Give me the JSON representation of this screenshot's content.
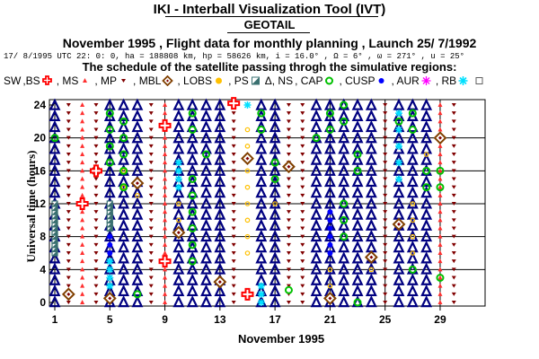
{
  "header": {
    "title": "IKI - Interball Visualization Tool (IVT)",
    "subtitle": "GEOTAIL",
    "info": "November 1995 ,  Flight data for monthly planning ,   Launch 25/ 7/1992",
    "params": "17/ 8/1995 UTC 22: 0: 0, ha = 188808 km, hp = 58626 km, i = 16.0° , Ω =   6° , ω = 271° , u =  25°",
    "schedule": "The schedule of the satellite passing throgh the simulative regions:"
  },
  "legend": [
    {
      "label": "SW",
      "icon": "none"
    },
    {
      "label": ",BS",
      "icon": "cross-icon",
      "color": "#ff0000"
    },
    {
      "label": ", MS",
      "icon": "ms-marker-icon",
      "color": "#ff3030"
    },
    {
      "label": ", MP",
      "icon": "small-down-triangle-icon",
      "color": "#800000"
    },
    {
      "label": ", MBL",
      "icon": "diamond-icon",
      "color": "#804000"
    },
    {
      "label": ", LOBS",
      "icon": "dot-icon",
      "color": "#ffc000"
    },
    {
      "label": ", PS",
      "icon": "half-square-icon",
      "color": "#3a7070"
    },
    {
      "label": "Δ, NS",
      "icon": "none"
    },
    {
      "label": ", CAP",
      "icon": "ring-icon",
      "color": "#00c000"
    },
    {
      "label": ", CUSP",
      "icon": "filled-circle-icon",
      "color": "#0000ff"
    },
    {
      "label": ", AUR",
      "icon": "star-icon",
      "color": "#ff00ff"
    },
    {
      "label": ", RB",
      "icon": "asterisk-icon",
      "color": "#00e0ff"
    },
    {
      "label": "",
      "icon": "small-square-icon",
      "color": "#606060"
    }
  ],
  "colors": {
    "ns": "#000080",
    "bs": "#ff0000",
    "ms": "#ff3030",
    "mp": "#800000",
    "mbl": "#804000",
    "lobs": "#ffc000",
    "ps": "#3a7070",
    "cap": "#00c000",
    "cusp": "#0000ff",
    "rb": "#00e0ff",
    "grid": "#000000"
  },
  "chart_data": {
    "type": "scatter",
    "xlabel": "November 1995",
    "ylabel": "Universal time (hours)",
    "xlim": [
      1,
      31
    ],
    "ylim": [
      0,
      24
    ],
    "x_ticks": [
      "1",
      "5",
      "9",
      "13",
      "17",
      "21",
      "25",
      "29"
    ],
    "y_ticks": [
      "0",
      "4",
      "8",
      "12",
      "16",
      "20",
      "24"
    ],
    "grid": true,
    "days": [
      {
        "day": 1,
        "ns": [
          0,
          24
        ],
        "ps": [
          6,
          12
        ],
        "cap": [
          20
        ]
      },
      {
        "day": 2,
        "mp": [
          0,
          24
        ],
        "mbl": [
          1
        ]
      },
      {
        "day": 3,
        "ms": [
          0,
          24
        ],
        "bs": [
          12
        ]
      },
      {
        "day": 4,
        "mp": [
          0,
          24
        ],
        "mbl": [
          16
        ],
        "bs": [
          16
        ]
      },
      {
        "day": 5,
        "ns": [
          0,
          24
        ],
        "cap": [
          17,
          19,
          21,
          23
        ],
        "cusp": [
          6,
          7,
          8
        ],
        "rb": [
          2,
          3,
          4,
          5
        ],
        "ps": [
          9,
          12
        ],
        "mbl": [
          0.5
        ]
      },
      {
        "day": 6,
        "ns": [
          0,
          24
        ],
        "cap": [
          14,
          16,
          18,
          20,
          22
        ],
        "lobs": [
          16,
          14
        ]
      },
      {
        "day": 7,
        "ns": [
          0,
          24
        ],
        "mbl": [
          14.5
        ],
        "lobs": [
          13
        ],
        "cap": [
          1
        ]
      },
      {
        "day": 8,
        "mp": [
          0,
          24
        ]
      },
      {
        "day": 9,
        "ms": [
          0,
          24
        ],
        "bs": [
          5,
          21.5
        ]
      },
      {
        "day": 10,
        "ns": [
          0,
          24
        ],
        "mbl": [
          8.5
        ],
        "rb": [
          14,
          15,
          16,
          17
        ],
        "lobs": [
          10,
          12
        ]
      },
      {
        "day": 11,
        "ns": [
          0,
          24
        ],
        "cap": [
          5,
          7,
          9,
          11,
          13,
          15,
          21,
          23
        ]
      },
      {
        "day": 12,
        "ns": [
          0,
          24
        ],
        "cap": [
          18
        ]
      },
      {
        "day": 13,
        "ns": [
          0,
          24
        ],
        "mbl": [
          2.5
        ]
      },
      {
        "day": 14,
        "mp": [
          0,
          24
        ],
        "bs": [
          24.2
        ]
      },
      {
        "day": 15,
        "mbl": [
          17.5
        ],
        "bs": [
          1
        ],
        "lobs": [
          6,
          8,
          10,
          12,
          14,
          16,
          19,
          21
        ],
        "rb": [
          24
        ]
      },
      {
        "day": 16,
        "ns": [
          0,
          24
        ],
        "cap": [
          21,
          23
        ],
        "rb": [
          0,
          1,
          2
        ]
      },
      {
        "day": 17,
        "ns": [
          0,
          24
        ],
        "cap": [
          15,
          17
        ],
        "lobs": [
          12
        ]
      },
      {
        "day": 18,
        "mp": [
          0,
          24
        ],
        "mbl": [
          16.5
        ],
        "cap": [
          1.5
        ]
      },
      {
        "day": 19,
        "mp": [
          0,
          24
        ]
      },
      {
        "day": 20,
        "ns": [
          0,
          24
        ],
        "cap": [
          20
        ]
      },
      {
        "day": 21,
        "ns": [
          0,
          24
        ],
        "mbl": [
          0.5
        ],
        "cusp": [
          6,
          7,
          8,
          9,
          10,
          11
        ],
        "cap": [
          21,
          23
        ],
        "lobs": [
          2,
          4
        ]
      },
      {
        "day": 22,
        "ns": [
          0,
          24
        ],
        "cap": [
          8,
          10,
          12,
          22,
          24
        ]
      },
      {
        "day": 23,
        "ns": [
          0,
          24
        ],
        "cap": [
          0,
          16,
          18
        ]
      },
      {
        "day": 24,
        "ns": [
          0,
          24
        ],
        "mbl": [
          5.5
        ],
        "lobs": [
          4
        ]
      },
      {
        "day": 25,
        "mp": [
          0,
          24
        ]
      },
      {
        "day": 26,
        "ns": [
          0,
          24
        ],
        "mbl": [
          9.5
        ],
        "rb": [
          15,
          17,
          19,
          21,
          23
        ],
        "cap": [
          22
        ]
      },
      {
        "day": 27,
        "ns": [
          0,
          24
        ],
        "cap": [
          4,
          21,
          23
        ],
        "lobs": [
          6,
          8,
          10,
          12
        ]
      },
      {
        "day": 28,
        "ns": [
          0,
          24
        ],
        "cap": [
          14,
          16
        ],
        "lobs": [
          18
        ]
      },
      {
        "day": 29,
        "ms": [
          0,
          24
        ],
        "mbl": [
          20
        ],
        "cap": [
          3,
          14,
          16
        ]
      },
      {
        "day": 30,
        "mp": [
          0,
          24
        ]
      }
    ]
  }
}
